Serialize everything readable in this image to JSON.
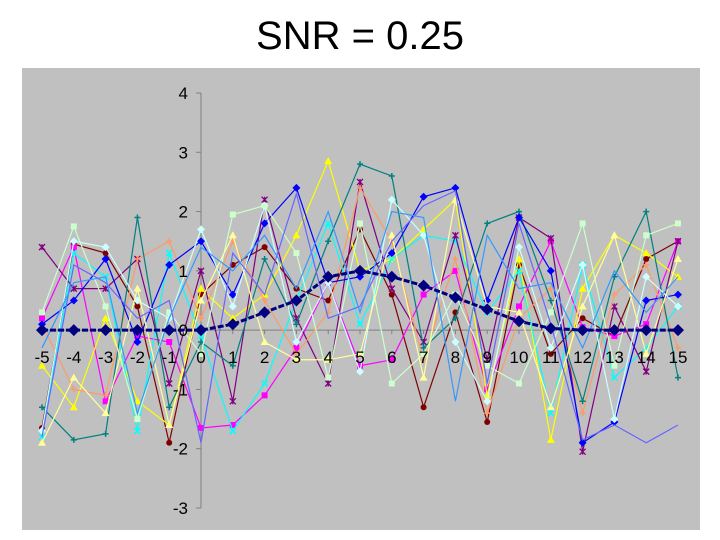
{
  "slide": {
    "title": "SNR = 0.25"
  },
  "chart_data": {
    "type": "line",
    "title": "",
    "xlabel": "",
    "ylabel": "",
    "xlim": [
      -5,
      15
    ],
    "ylim": [
      -3,
      4
    ],
    "x_ticks": [
      -5,
      -4,
      -3,
      -2,
      -1,
      0,
      1,
      2,
      3,
      4,
      5,
      6,
      7,
      8,
      9,
      10,
      11,
      12,
      13,
      14,
      15
    ],
    "y_ticks": [
      -3,
      -2,
      -1,
      0,
      1,
      2,
      3,
      4
    ],
    "grid": false,
    "legend": "none",
    "plot_background": "#c0c0c0",
    "x": [
      -5,
      -4,
      -3,
      -2,
      -1,
      0,
      1,
      2,
      3,
      4,
      5,
      6,
      7,
      8,
      9,
      10,
      11,
      12,
      13,
      14,
      15
    ],
    "signal": {
      "color": "#000080",
      "marker": "diamond",
      "values": [
        0,
        0,
        0,
        0,
        0,
        0,
        0.1,
        0.3,
        0.5,
        0.9,
        1.0,
        0.9,
        0.75,
        0.55,
        0.35,
        0.15,
        0.03,
        0,
        0,
        0,
        0
      ]
    },
    "noisy_series": [
      {
        "color": "#800000",
        "marker": "circle",
        "values": [
          -1.65,
          1.45,
          1.3,
          0.4,
          -1.9,
          0.6,
          1.1,
          1.4,
          0.7,
          0.5,
          1.7,
          0.6,
          -1.3,
          0.3,
          -1.55,
          1.1,
          -0.4,
          0.2,
          -0.1,
          1.2,
          1.5
        ]
      },
      {
        "color": "#ff00ff",
        "marker": "square",
        "values": [
          0.2,
          1.4,
          -1.2,
          -0.1,
          -0.2,
          -1.65,
          -1.6,
          -1.1,
          -0.3,
          0.8,
          -0.6,
          -0.5,
          0.6,
          1.0,
          -1.0,
          0.4,
          1.5,
          0.05,
          -0.1,
          0.1,
          1.5
        ]
      },
      {
        "color": "#ffff00",
        "marker": "triangle",
        "values": [
          -0.6,
          -1.3,
          0.2,
          -1.2,
          -1.6,
          0.7,
          0.2,
          0.6,
          1.6,
          2.85,
          1.0,
          1.2,
          1.7,
          2.2,
          -1.1,
          1.2,
          -1.85,
          0.7,
          1.6,
          1.3,
          0.9
        ]
      },
      {
        "color": "#00ffff",
        "marker": "x",
        "values": [
          -1.8,
          1.3,
          0.9,
          -1.7,
          1.3,
          -0.1,
          -1.7,
          -0.9,
          0.5,
          1.8,
          0.1,
          1.2,
          1.6,
          1.5,
          0.3,
          1.0,
          -1.4,
          1.1,
          -0.8,
          -0.3,
          0.4
        ]
      },
      {
        "color": "#800080",
        "marker": "star",
        "values": [
          1.4,
          0.7,
          0.7,
          1.2,
          -0.9,
          1.0,
          -1.2,
          2.2,
          0.2,
          -0.9,
          2.5,
          0.7,
          -0.2,
          1.6,
          -0.5,
          1.9,
          1.55,
          -2.05,
          0.4,
          -0.7,
          1.5
        ]
      },
      {
        "color": "#ff9966",
        "marker": "plus",
        "values": [
          0.1,
          -1.0,
          -1.1,
          1.2,
          1.5,
          0.2,
          1.5,
          0.5,
          -0.4,
          0.3,
          2.4,
          1.5,
          -0.5,
          1.2,
          -1.4,
          0.2,
          0.7,
          -1.4,
          0.6,
          1.1,
          -0.3
        ]
      },
      {
        "color": "#008080",
        "marker": "plus",
        "values": [
          -1.3,
          -1.85,
          -1.75,
          1.9,
          -1.3,
          -0.2,
          -0.6,
          1.2,
          0.1,
          1.5,
          2.8,
          2.6,
          -0.3,
          0.2,
          1.8,
          2.0,
          0.5,
          -1.2,
          0.9,
          2.0,
          -0.8
        ]
      },
      {
        "color": "#0000ff",
        "marker": "diamond",
        "values": [
          0.1,
          0.5,
          1.2,
          -0.2,
          1.1,
          1.5,
          0.6,
          1.8,
          2.4,
          0.8,
          0.9,
          1.3,
          2.25,
          2.4,
          0.5,
          1.9,
          1.0,
          -1.9,
          -1.55,
          0.5,
          0.6
        ]
      },
      {
        "color": "#ccffff",
        "marker": "diamond",
        "values": [
          -1.7,
          1.5,
          1.4,
          0.5,
          0.2,
          1.7,
          0.4,
          2.1,
          -0.2,
          0.8,
          -0.7,
          2.2,
          1.6,
          -0.2,
          -1.2,
          1.4,
          -0.3,
          1.1,
          -1.5,
          0.9,
          0.4
        ]
      },
      {
        "color": "#ccffcc",
        "marker": "square",
        "values": [
          0.3,
          1.75,
          0.4,
          -1.5,
          0.3,
          -0.4,
          1.95,
          2.1,
          1.3,
          -0.8,
          1.8,
          -0.9,
          -0.4,
          0.6,
          -0.6,
          -0.9,
          0.3,
          1.8,
          -0.6,
          1.6,
          1.8
        ]
      },
      {
        "color": "#ffff99",
        "marker": "triangle",
        "values": [
          -1.9,
          -0.8,
          -1.4,
          0.7,
          -1.6,
          0.5,
          1.6,
          -0.2,
          -0.5,
          -0.5,
          -0.4,
          1.6,
          -0.8,
          2.2,
          0.4,
          0.3,
          -1.3,
          0.4,
          1.6,
          -0.4,
          1.2
        ]
      },
      {
        "color": "#6666ff",
        "marker": "none",
        "values": [
          -1.8,
          1.1,
          0.8,
          0.2,
          0.5,
          -1.9,
          1.3,
          0.6,
          2.3,
          0.2,
          0.4,
          1.5,
          2.1,
          2.35,
          -0.9,
          1.8,
          0.1,
          -1.85,
          -1.6,
          -1.9,
          -1.6
        ]
      },
      {
        "color": "#3399ff",
        "marker": "none",
        "values": [
          -0.3,
          0.8,
          0.9,
          -1.4,
          0.2,
          1.4,
          1.0,
          1.6,
          0.7,
          2.0,
          0.3,
          2.0,
          1.9,
          -1.2,
          1.6,
          0.7,
          0.8,
          -0.3,
          1.0,
          0.3,
          0.9
        ]
      }
    ]
  }
}
